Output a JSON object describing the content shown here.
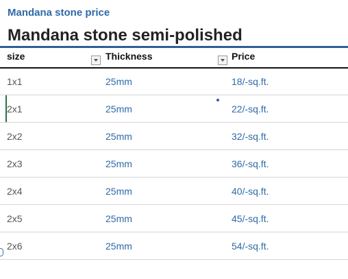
{
  "header": {
    "title": "Mandana stone price",
    "subtitle": "Mandana stone semi-polished"
  },
  "table": {
    "columns": [
      "size",
      "Thickness",
      "Price"
    ],
    "rows": [
      [
        "1x1",
        "25mm",
        "18/-sq.ft."
      ],
      [
        "2x1",
        "25mm",
        "22/-sq.ft."
      ],
      [
        "2x2",
        "25mm",
        "32/-sq.ft."
      ],
      [
        "2x3",
        "25mm",
        "36/-sq.ft."
      ],
      [
        "2x4",
        "25mm",
        "40/-sq.ft."
      ],
      [
        "2x5",
        "25mm",
        "45/-sq.ft."
      ],
      [
        "2x6",
        "25mm",
        "54/-sq.ft."
      ]
    ]
  }
}
